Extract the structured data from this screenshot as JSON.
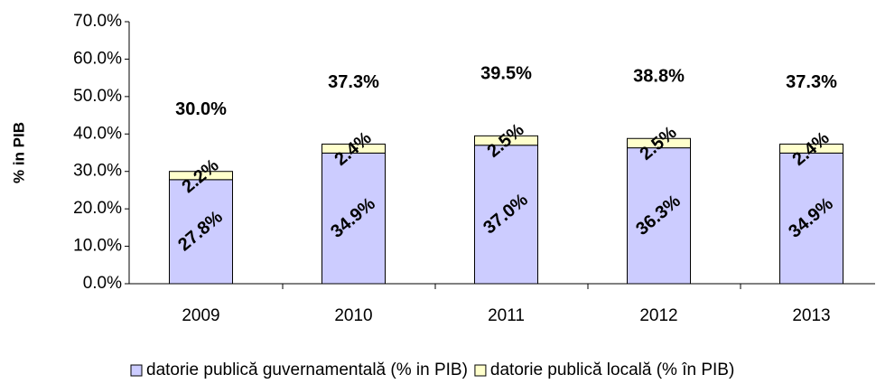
{
  "chart_data": {
    "type": "stacked_bar",
    "y_axis_label": "% in PIB",
    "categories": [
      "2009",
      "2010",
      "2011",
      "2012",
      "2013"
    ],
    "series": [
      {
        "name": "datorie publică guvernamentală (% in PIB)",
        "color": "#ccccff",
        "values": [
          27.8,
          34.9,
          37.0,
          36.3,
          34.9
        ],
        "value_labels": [
          "27.8%",
          "34.9%",
          "37.0%",
          "36.3%",
          "34.9%"
        ]
      },
      {
        "name": "datorie publică locală (% în PIB)",
        "color": "#ffffcc",
        "values": [
          2.2,
          2.4,
          2.5,
          2.5,
          2.4
        ],
        "value_labels": [
          "2.2%",
          "2.4%",
          "2.5%",
          "2.5%",
          "2.4%"
        ]
      }
    ],
    "totals": [
      30.0,
      37.3,
      39.5,
      38.8,
      37.3
    ],
    "total_labels": [
      "30.0%",
      "37.3%",
      "39.5%",
      "38.8%",
      "37.3%"
    ],
    "ylim": [
      0,
      70
    ],
    "yticks": [
      {
        "value": 0,
        "label": "0.0%"
      },
      {
        "value": 10,
        "label": "10.0%"
      },
      {
        "value": 20,
        "label": "20.0%"
      },
      {
        "value": 30,
        "label": "30.0%"
      },
      {
        "value": 40,
        "label": "40.0%"
      },
      {
        "value": 50,
        "label": "50.0%"
      },
      {
        "value": 60,
        "label": "60.0%"
      },
      {
        "value": 70,
        "label": "70.0%"
      }
    ],
    "grid": false,
    "legend": "bottom"
  }
}
